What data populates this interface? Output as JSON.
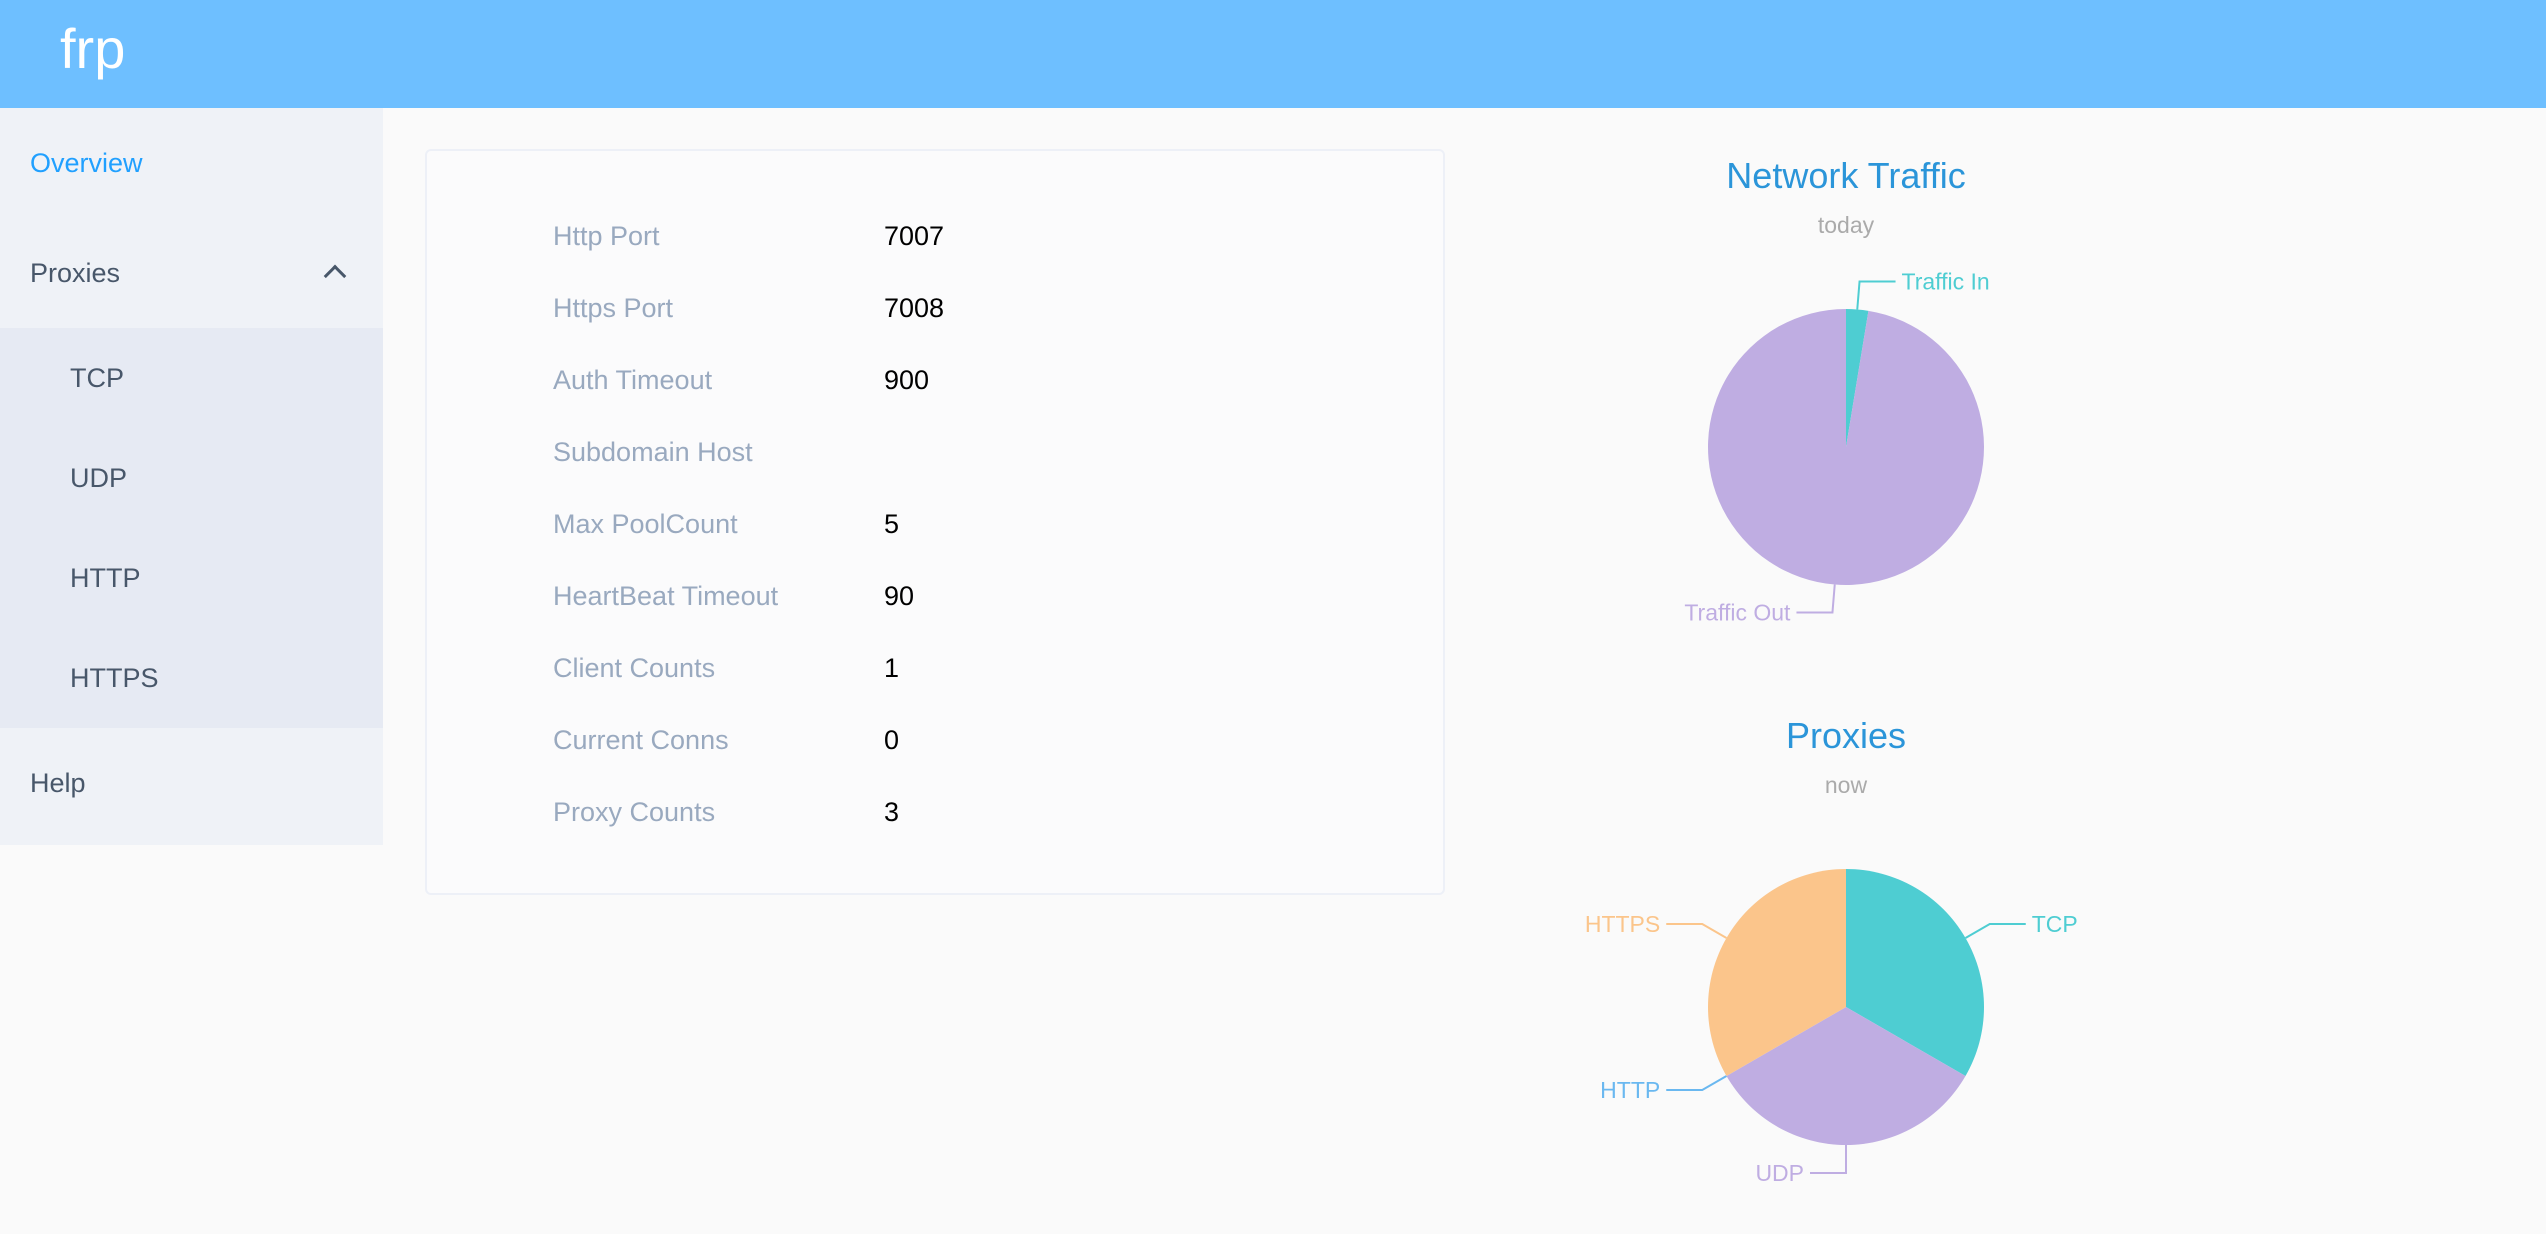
{
  "header": {
    "title": "frp"
  },
  "sidebar": {
    "items": [
      {
        "label": "Overview",
        "active": true
      },
      {
        "label": "Proxies",
        "expanded": true,
        "icon": "chevron-up-icon",
        "children": [
          {
            "label": "TCP"
          },
          {
            "label": "UDP"
          },
          {
            "label": "HTTP"
          },
          {
            "label": "HTTPS"
          }
        ]
      },
      {
        "label": "Help"
      }
    ]
  },
  "server_info": {
    "rows": [
      {
        "label": "Http Port",
        "value": "7007"
      },
      {
        "label": "Https Port",
        "value": "7008"
      },
      {
        "label": "Auth Timeout",
        "value": "900"
      },
      {
        "label": "Subdomain Host",
        "value": ""
      },
      {
        "label": "Max PoolCount",
        "value": "5"
      },
      {
        "label": "HeartBeat Timeout",
        "value": "90"
      },
      {
        "label": "Client Counts",
        "value": "1"
      },
      {
        "label": "Current Conns",
        "value": "0"
      },
      {
        "label": "Proxy Counts",
        "value": "3"
      }
    ]
  },
  "colors": {
    "header": "#6ebfff",
    "accent": "#20a0ff",
    "chart_title": "#2b95d9"
  },
  "chart_data": [
    {
      "type": "pie",
      "title": "Network Traffic",
      "subtitle": "today",
      "categories": [
        "Traffic In",
        "Traffic Out"
      ],
      "values": [
        2.6,
        97.4
      ],
      "colors": [
        "#4ecdd2",
        "#bfade2"
      ]
    },
    {
      "type": "pie",
      "title": "Proxies",
      "subtitle": "now",
      "categories": [
        "TCP",
        "UDP",
        "HTTP",
        "HTTPS"
      ],
      "values": [
        1,
        1,
        0,
        1
      ],
      "colors": [
        "#4ecdd2",
        "#bfade2",
        "#6ab8f0",
        "#fbc58b"
      ]
    }
  ]
}
